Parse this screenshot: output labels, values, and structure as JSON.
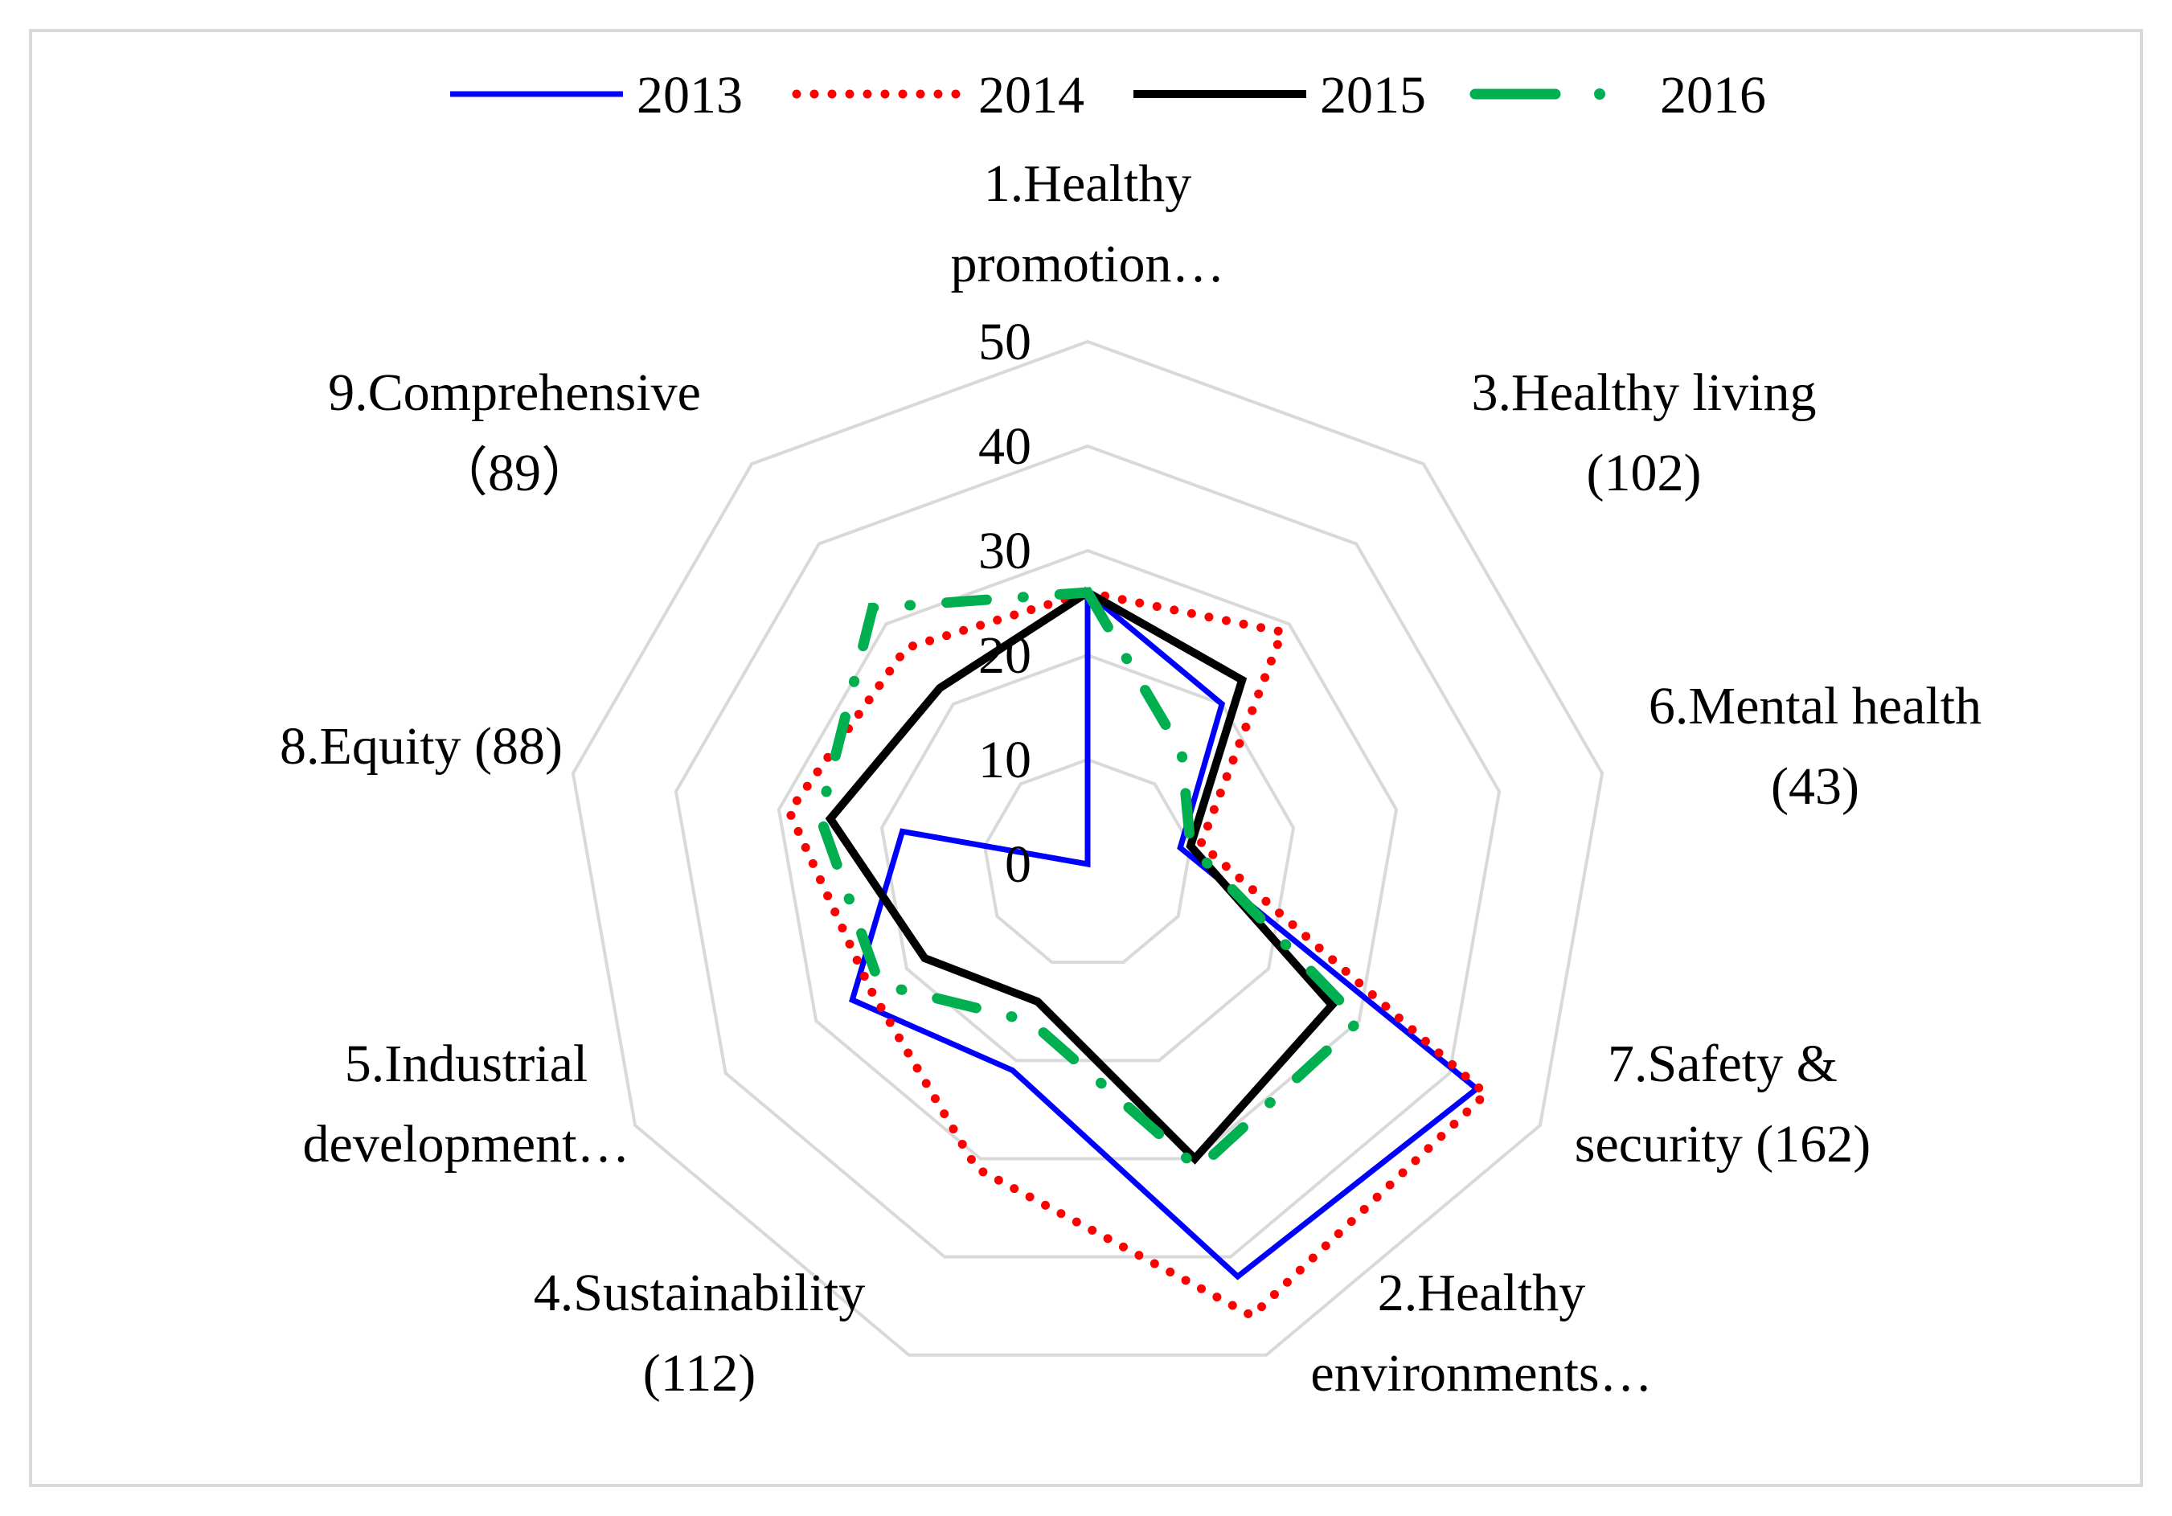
{
  "chart_data": {
    "type": "radar",
    "title": "",
    "categories": [
      "1.Healthy promotion…",
      "3.Healthy living (102)",
      "6.Mental health (43)",
      "7.Safety & security (162)",
      "2.Healthy environments…",
      "4.Sustainability (112)",
      "5.Industrial development…",
      "8.Equity (88)",
      "9.Comprehensive （89）"
    ],
    "category_lines": [
      [
        "1.Healthy",
        "promotion…"
      ],
      [
        "3.Healthy living",
        "(102)"
      ],
      [
        "6.Mental health",
        "(43)"
      ],
      [
        "7.Safety &",
        "security (162)"
      ],
      [
        "2.Healthy",
        "environments…"
      ],
      [
        "4.Sustainability",
        "(112)"
      ],
      [
        "5.Industrial",
        "development…"
      ],
      [
        "8.Equity (88)"
      ],
      [
        "9.Comprehensive",
        "（89）"
      ]
    ],
    "rlim": [
      0,
      50
    ],
    "ticks": [
      0,
      10,
      20,
      30,
      40,
      50
    ],
    "tick_labels": [
      "0",
      "10",
      "20",
      "30",
      "40",
      "50"
    ],
    "grid": true,
    "legend_position": "top",
    "series": [
      {
        "name": "2013",
        "color": "#0000ff",
        "style": "solid",
        "values": [
          26,
          20,
          9,
          43,
          42,
          21,
          26,
          18,
          0
        ]
      },
      {
        "name": "2014",
        "color": "#ff0000",
        "style": "dotted",
        "values": [
          26,
          29,
          11,
          44,
          46,
          31,
          24,
          29,
          27
        ]
      },
      {
        "name": "2015",
        "color": "#000000",
        "style": "solid",
        "values": [
          26,
          23,
          10,
          27,
          30,
          14,
          18,
          25,
          22
        ]
      },
      {
        "name": "2016",
        "color": "#00b050",
        "style": "dash-dot",
        "values": [
          26,
          14,
          10,
          30,
          31,
          16,
          23,
          26,
          32
        ]
      }
    ]
  }
}
